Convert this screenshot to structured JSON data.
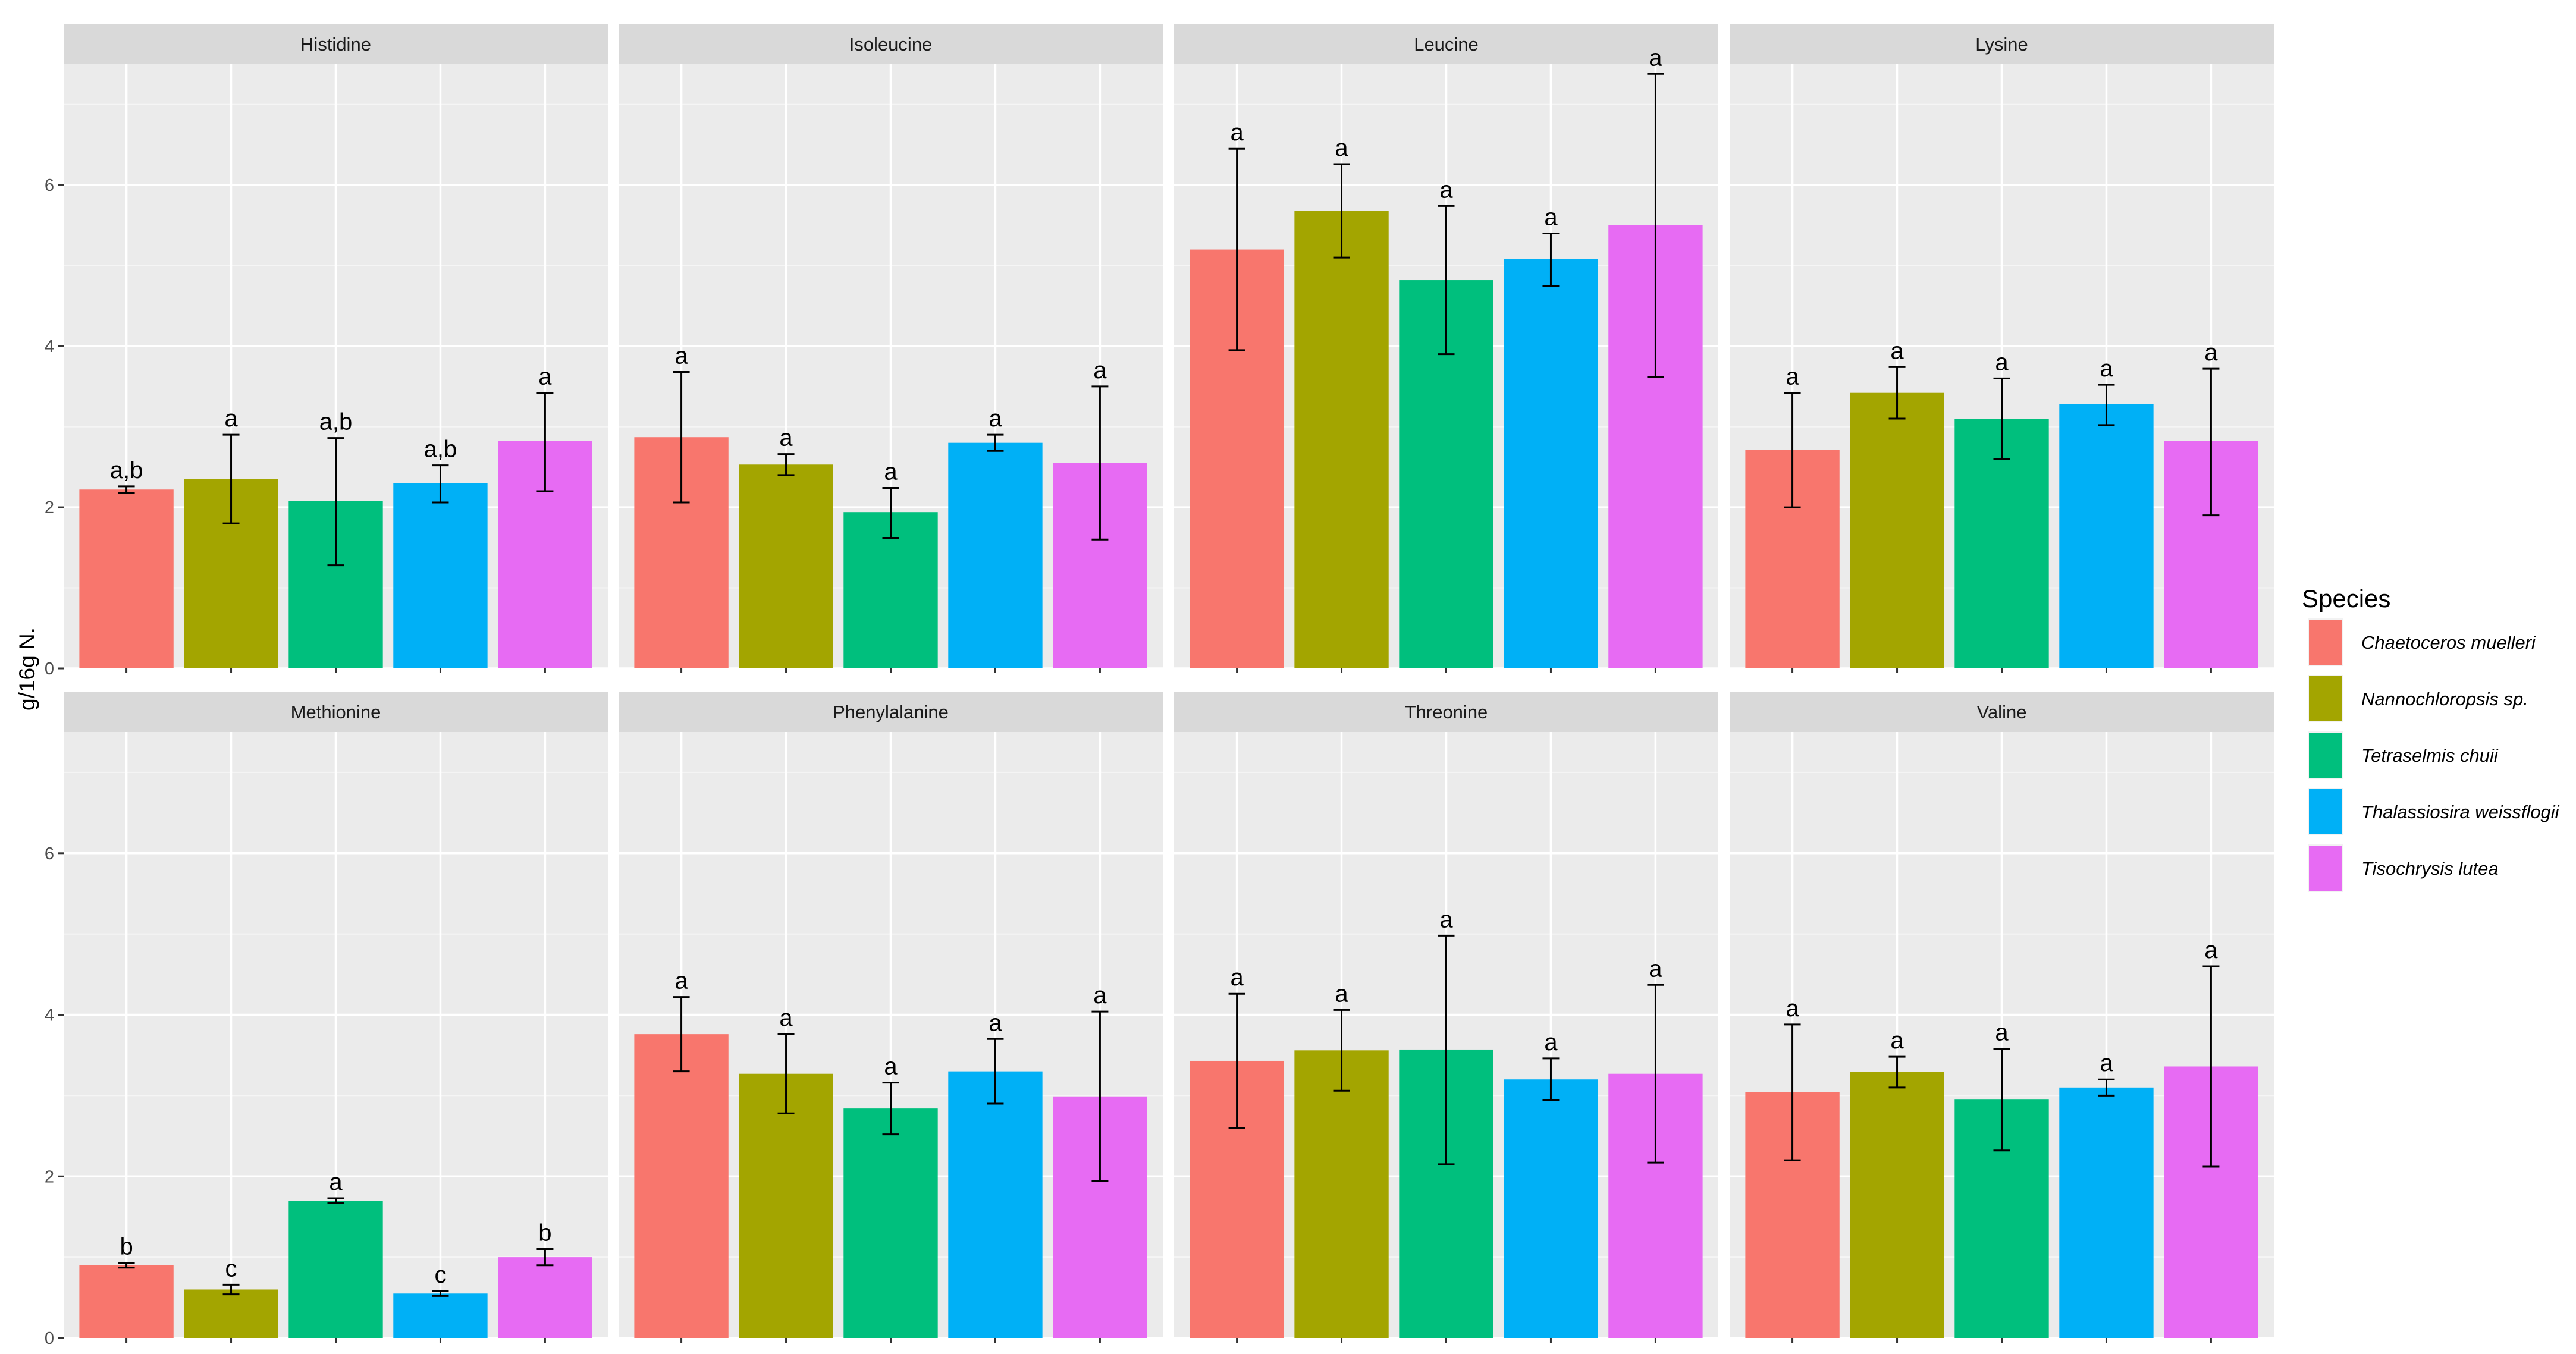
{
  "chart_data": {
    "type": "bar",
    "facet_layout": "2 rows x 4 columns",
    "ylabel": "g/16g N.",
    "xlabel": "",
    "ylim": [
      0,
      7.5
    ],
    "yticks": [
      0,
      2,
      4,
      6
    ],
    "grid": true,
    "legend": {
      "title": "Species",
      "position": "right",
      "entries": [
        {
          "name": "Chaetoceros muelleri",
          "color": "#F8766D"
        },
        {
          "name": "Nannochloropsis sp.",
          "color": "#A3A500"
        },
        {
          "name": "Tetraselmis chuii",
          "color": "#00BF7D"
        },
        {
          "name": "Thalassiosira weissflogii",
          "color": "#00B0F6"
        },
        {
          "name": "Tisochrysis lutea",
          "color": "#E76BF3"
        }
      ]
    },
    "panels": [
      {
        "title": "Histidine",
        "values": [
          2.22,
          2.35,
          2.08,
          2.3,
          2.82
        ],
        "err_low": [
          2.18,
          1.8,
          1.28,
          2.06,
          2.2
        ],
        "err_high": [
          2.26,
          2.9,
          2.86,
          2.52,
          3.42
        ],
        "labels": [
          "a,b",
          "a",
          "a,b",
          "a,b",
          "a"
        ]
      },
      {
        "title": "Isoleucine",
        "values": [
          2.87,
          2.53,
          1.94,
          2.8,
          2.55
        ],
        "err_low": [
          2.06,
          2.4,
          1.62,
          2.7,
          1.6
        ],
        "err_high": [
          3.68,
          2.66,
          2.24,
          2.9,
          3.5
        ],
        "labels": [
          "a",
          "a",
          "a",
          "a",
          "a"
        ]
      },
      {
        "title": "Leucine",
        "values": [
          5.2,
          5.68,
          4.82,
          5.08,
          5.5
        ],
        "err_low": [
          3.95,
          5.1,
          3.9,
          4.75,
          3.62
        ],
        "err_high": [
          6.45,
          6.26,
          5.74,
          5.4,
          7.38
        ],
        "labels": [
          "a",
          "a",
          "a",
          "a",
          "a"
        ]
      },
      {
        "title": "Lysine",
        "values": [
          2.71,
          3.42,
          3.1,
          3.28,
          2.82
        ],
        "err_low": [
          2.0,
          3.1,
          2.6,
          3.02,
          1.9
        ],
        "err_high": [
          3.42,
          3.74,
          3.6,
          3.52,
          3.72
        ],
        "labels": [
          "a",
          "a",
          "a",
          "a",
          "a"
        ]
      },
      {
        "title": "Methionine",
        "values": [
          0.9,
          0.6,
          1.7,
          0.55,
          1.0
        ],
        "err_low": [
          0.87,
          0.54,
          1.67,
          0.52,
          0.9
        ],
        "err_high": [
          0.93,
          0.66,
          1.73,
          0.58,
          1.1
        ],
        "labels": [
          "b",
          "c",
          "a",
          "c",
          "b"
        ]
      },
      {
        "title": "Phenylalanine",
        "values": [
          3.76,
          3.27,
          2.84,
          3.3,
          2.99
        ],
        "err_low": [
          3.3,
          2.78,
          2.52,
          2.9,
          1.94
        ],
        "err_high": [
          4.22,
          3.76,
          3.16,
          3.7,
          4.04
        ],
        "labels": [
          "a",
          "a",
          "a",
          "a",
          "a"
        ]
      },
      {
        "title": "Threonine",
        "values": [
          3.43,
          3.56,
          3.57,
          3.2,
          3.27
        ],
        "err_low": [
          2.6,
          3.06,
          2.15,
          2.94,
          2.17
        ],
        "err_high": [
          4.26,
          4.06,
          4.98,
          3.46,
          4.37
        ],
        "labels": [
          "a",
          "a",
          "a",
          "a",
          "a"
        ]
      },
      {
        "title": "Valine",
        "values": [
          3.04,
          3.29,
          2.95,
          3.1,
          3.36
        ],
        "err_low": [
          2.2,
          3.1,
          2.32,
          3.0,
          2.12
        ],
        "err_high": [
          3.88,
          3.48,
          3.58,
          3.2,
          4.6
        ],
        "labels": [
          "a",
          "a",
          "a",
          "a",
          "a"
        ]
      }
    ]
  }
}
